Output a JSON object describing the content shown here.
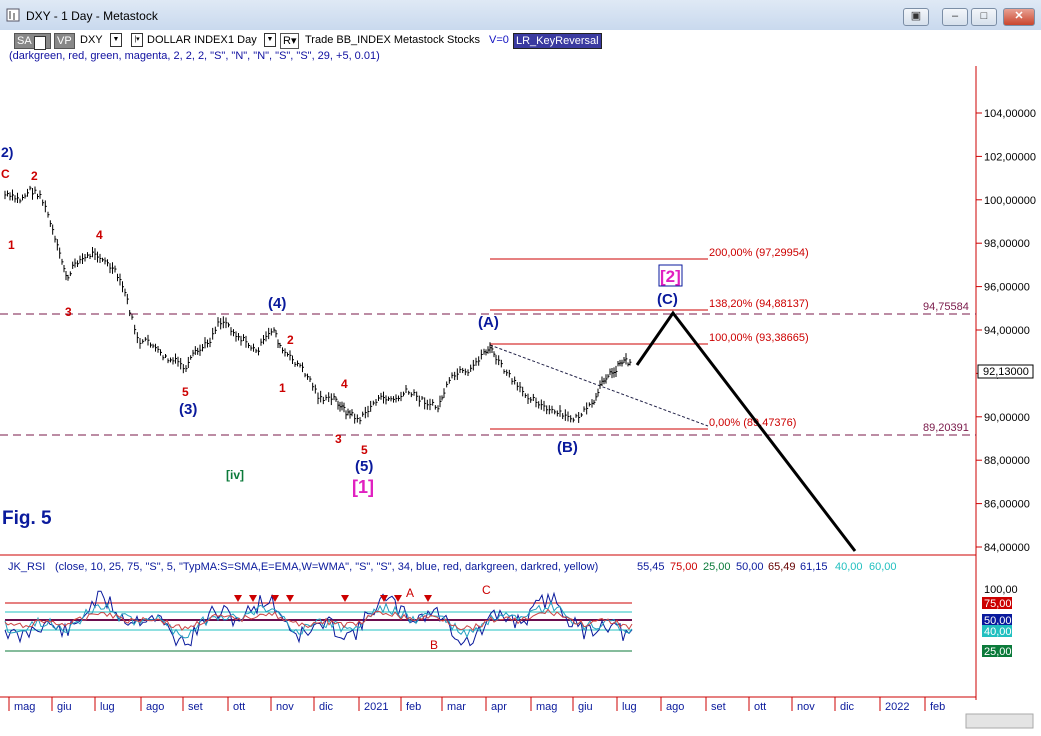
{
  "window": {
    "title": "DXY - 1 Day - Metastock",
    "buttons": [
      "restore",
      "minimize",
      "maximize",
      "close"
    ]
  },
  "toolbar": {
    "sa": "SA",
    "vp": "VP",
    "symbol": "DXY",
    "name": "DOLLAR INDEX",
    "period": "1 Day",
    "r": "R",
    "rest": "Trade BB_INDEX Metastock Stocks",
    "v": "V=0",
    "indicator": "LR_KeyReversal",
    "params": "(darkgreen, red, green, magenta, 2, 2, 2, \"S\", \"N\", \"N\", \"S\", \"S\", 29, +5, 0.01)"
  },
  "price_axis": [
    "104,00000",
    "102,00000",
    "100,00000",
    "98,00000",
    "96,00000",
    "94,00000",
    "92,00000",
    "90,00000",
    "88,00000",
    "86,00000",
    "84,00000"
  ],
  "last_price": "92,13000",
  "levels": {
    "upper": "94,75584",
    "lower": "89,20391",
    "fib200": "200,00% (97,29954)",
    "fib138": "138,20% (94,88137)",
    "fib100": "100,00% (93,38665)",
    "fib0": "0,00% (89,47376)"
  },
  "wave_labels": {
    "w2top": "2)",
    "c_left": "C",
    "w1": "1",
    "w2": "2",
    "w3": "3",
    "w4": "4",
    "w3paren": "(3)",
    "w5a": "5",
    "w4paren": "(4)",
    "w2b": "2",
    "w1b": "1",
    "w4b": "4",
    "w3b": "3",
    "w5b": "5",
    "w5paren": "(5)",
    "w1bracket": "[1]",
    "iv": "[iv]",
    "a_paren": "(A)",
    "b_paren": "(B)",
    "c_paren": "(C)",
    "w2bracket": "[2]",
    "fig": "Fig. 5"
  },
  "rsi": {
    "header": "JK_RSI",
    "params": "(close, 10, 25, 75, \"S\", 5, \"TypMA:S=SMA,E=EMA,W=WMA\", \"S\", \"S\", 34, blue, red, darkgreen, darkred, yellow)",
    "v1": "55,45",
    "v2": "75,00",
    "v3": "25,00",
    "v4": "50,00",
    "v5": "65,49",
    "v6": "61,15",
    "v7": "40,00",
    "v8": "60,00",
    "axis": [
      "100,00",
      "75,00",
      "50,00",
      "40,00",
      "25,00"
    ],
    "labels": {
      "a": "A",
      "b": "B",
      "c": "C"
    }
  },
  "date_axis": [
    "mag",
    "giu",
    "lug",
    "ago",
    "set",
    "ott",
    "nov",
    "dic",
    "2021",
    "feb",
    "mar",
    "apr",
    "mag",
    "giu",
    "lug",
    "ago",
    "set",
    "ott",
    "nov",
    "dic",
    "2022",
    "feb"
  ],
  "colors": {
    "red": "#cc0000",
    "blue": "#0a1a9c",
    "magenta": "#e020c0",
    "green": "#0b7a3a",
    "dashed": "#7a1a4a"
  }
}
